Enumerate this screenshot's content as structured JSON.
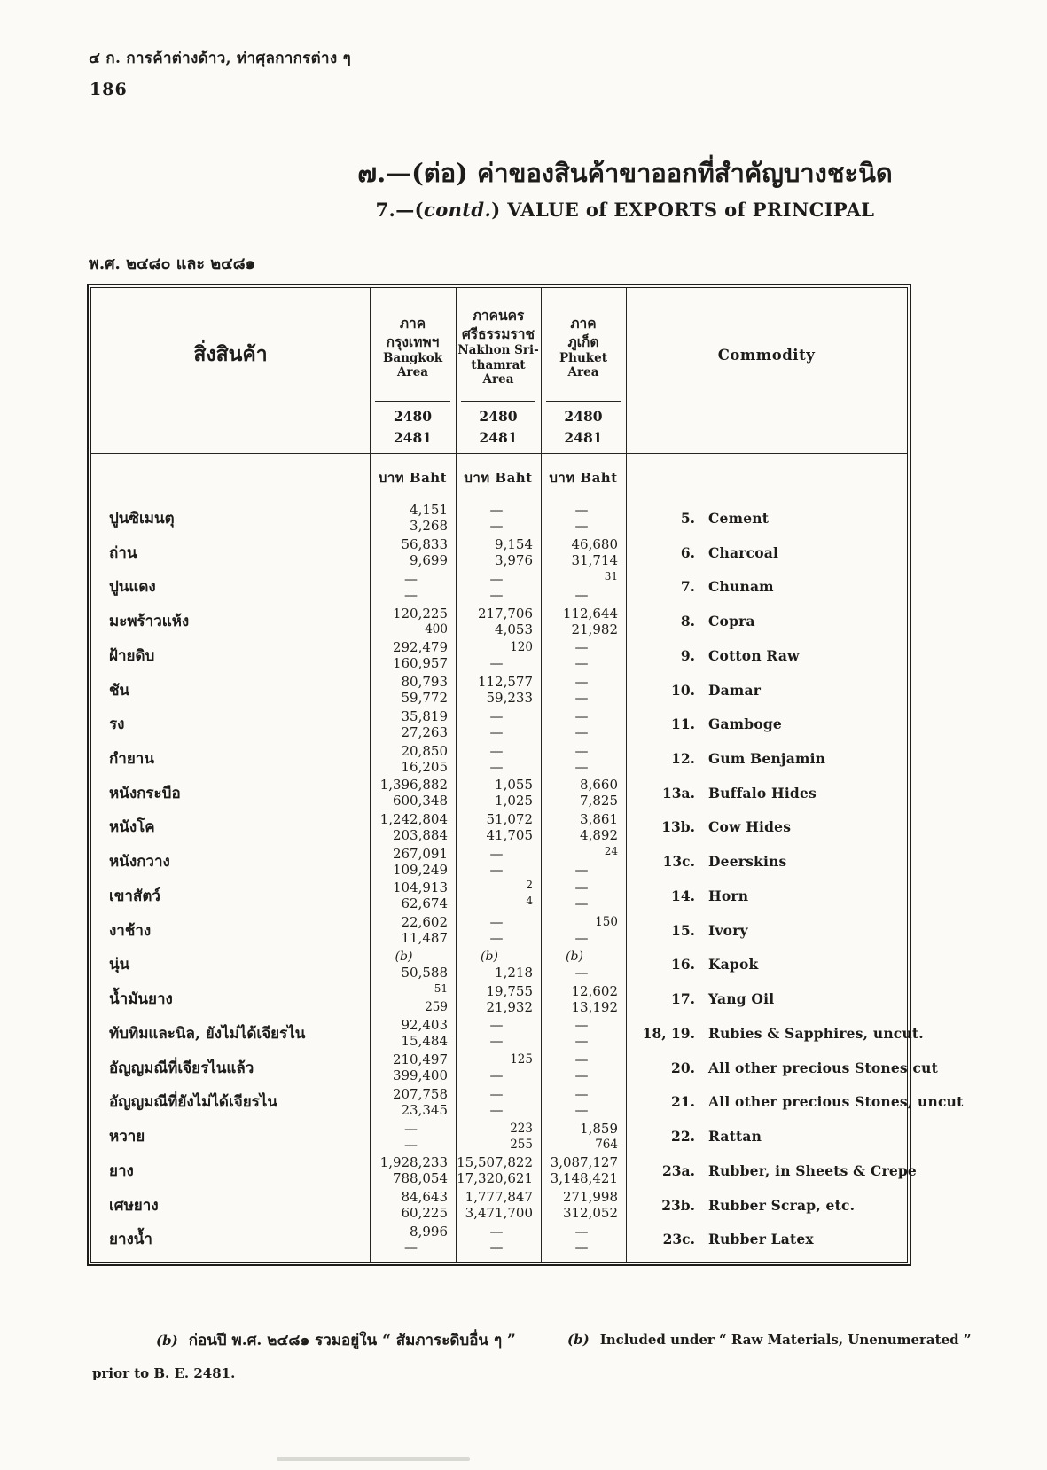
{
  "page": {
    "corner_note": "๔ ก.  การค้าต่างด้าว, ท่าศุลกากรต่าง ๆ",
    "page_number": "186",
    "title_th": "๗.—(ต่อ)  ค่าของสินค้าขาออกที่สำคัญบางชะนิด",
    "title_en_prefix": "7.—(",
    "title_en_contd": "contd.",
    "title_en_rest": ")  VALUE of EXPORTS of PRINCIPAL",
    "years_note": "พ.ศ. ๒๔๘๐ และ ๒๔๘๑"
  },
  "table": {
    "commodity_th_header": "สิ่งสินค้า",
    "commodity_en_header": "Commodity",
    "unit": "บาท  Baht",
    "years": [
      "2480",
      "2481"
    ],
    "areas": [
      {
        "th_lines": [
          "ภาค",
          "กรุงเทพฯ"
        ],
        "en_lines": [
          "Bangkok",
          "Area"
        ]
      },
      {
        "th_lines": [
          "ภาคนคร",
          "ศรีธรรมราช"
        ],
        "en_lines": [
          "Nakhon Sri-",
          "thamrat",
          "Area"
        ]
      },
      {
        "th_lines": [
          "ภาค",
          "ภูเก็ต"
        ],
        "en_lines": [
          "Phuket",
          "Area"
        ]
      }
    ],
    "rows": [
      {
        "th": "ปูนซิเมนตุ",
        "bangkok": [
          "4,151",
          "3,268"
        ],
        "nakhon": [
          "—",
          "—"
        ],
        "phuket": [
          "—",
          "—"
        ],
        "num": "5.",
        "en": "Cement"
      },
      {
        "th": "ถ่าน",
        "bangkok": [
          "56,833",
          "9,699"
        ],
        "nakhon": [
          "9,154",
          "3,976"
        ],
        "phuket": [
          "46,680",
          "31,714"
        ],
        "num": "6.",
        "en": "Charcoal"
      },
      {
        "th": "ปูนแดง",
        "bangkok": [
          "—",
          "—"
        ],
        "nakhon": [
          "—",
          "—"
        ],
        "phuket": [
          "31",
          "—"
        ],
        "num": "7.",
        "en": "Chunam"
      },
      {
        "th": "มะพร้าวแห้ง",
        "bangkok": [
          "120,225",
          "400"
        ],
        "nakhon": [
          "217,706",
          "4,053"
        ],
        "phuket": [
          "112,644",
          "21,982"
        ],
        "num": "8.",
        "en": "Copra"
      },
      {
        "th": "ฝ้ายดิบ",
        "bangkok": [
          "292,479",
          "160,957"
        ],
        "nakhon": [
          "120",
          "—"
        ],
        "phuket": [
          "—",
          "—"
        ],
        "num": "9.",
        "en": "Cotton Raw"
      },
      {
        "th": "ชัน",
        "bangkok": [
          "80,793",
          "59,772"
        ],
        "nakhon": [
          "112,577",
          "59,233"
        ],
        "phuket": [
          "—",
          "—"
        ],
        "num": "10.",
        "en": "Damar"
      },
      {
        "th": "รง",
        "bangkok": [
          "35,819",
          "27,263"
        ],
        "nakhon": [
          "—",
          "—"
        ],
        "phuket": [
          "—",
          "—"
        ],
        "num": "11.",
        "en": "Gamboge"
      },
      {
        "th": "กำยาน",
        "bangkok": [
          "20,850",
          "16,205"
        ],
        "nakhon": [
          "—",
          "—"
        ],
        "phuket": [
          "—",
          "—"
        ],
        "num": "12.",
        "en": "Gum Benjamin"
      },
      {
        "th": "หนังกระบือ",
        "bangkok": [
          "1,396,882",
          "600,348"
        ],
        "nakhon": [
          "1,055",
          "1,025"
        ],
        "phuket": [
          "8,660",
          "7,825"
        ],
        "num": "13a.",
        "en": "Buffalo Hides"
      },
      {
        "th": "หนังโค",
        "bangkok": [
          "1,242,804",
          "203,884"
        ],
        "nakhon": [
          "51,072",
          "41,705"
        ],
        "phuket": [
          "3,861",
          "4,892"
        ],
        "num": "13b.",
        "en": "Cow Hides"
      },
      {
        "th": "หนังกวาง",
        "bangkok": [
          "267,091",
          "109,249"
        ],
        "nakhon": [
          "—",
          "—"
        ],
        "phuket": [
          "24",
          "—"
        ],
        "num": "13c.",
        "en": "Deerskins"
      },
      {
        "th": "เขาสัตว์",
        "bangkok": [
          "104,913",
          "62,674"
        ],
        "nakhon": [
          "2",
          "4"
        ],
        "phuket": [
          "—",
          "—"
        ],
        "num": "14.",
        "en": "Horn"
      },
      {
        "th": "งาช้าง",
        "bangkok": [
          "22,602",
          "11,487"
        ],
        "nakhon": [
          "—",
          "—"
        ],
        "phuket": [
          "150",
          "—"
        ],
        "num": "15.",
        "en": "Ivory"
      },
      {
        "th": "นุ่น",
        "bangkok": [
          "(b)",
          "50,588"
        ],
        "nakhon": [
          "(b)",
          "1,218"
        ],
        "phuket": [
          "(b)",
          "—"
        ],
        "num": "16.",
        "en": "Kapok"
      },
      {
        "th": "น้ำมันยาง",
        "bangkok": [
          "51",
          "259"
        ],
        "nakhon": [
          "19,755",
          "21,932"
        ],
        "phuket": [
          "12,602",
          "13,192"
        ],
        "num": "17.",
        "en": "Yang Oil"
      },
      {
        "th": "ทับทิมและนิล, ยังไม่ได้เจียรไน",
        "bangkok": [
          "92,403",
          "15,484"
        ],
        "nakhon": [
          "—",
          "—"
        ],
        "phuket": [
          "—",
          "—"
        ],
        "num": "18, 19.",
        "en": "Rubies & Sapphires, uncut."
      },
      {
        "th": "อัญญมณีที่เจียรไนแล้ว",
        "bangkok": [
          "210,497",
          "399,400"
        ],
        "nakhon": [
          "125",
          "—"
        ],
        "phuket": [
          "—",
          "—"
        ],
        "num": "20.",
        "en": "All other precious Stones cut"
      },
      {
        "th": "อัญญมณีที่ยังไม่ได้เจียรไน",
        "bangkok": [
          "207,758",
          "23,345"
        ],
        "nakhon": [
          "—",
          "—"
        ],
        "phuket": [
          "—",
          "—"
        ],
        "num": "21.",
        "en": "All other precious Stones, uncut"
      },
      {
        "th": "หวาย",
        "bangkok": [
          "—",
          "—"
        ],
        "nakhon": [
          "223",
          "255"
        ],
        "phuket": [
          "1,859",
          "764"
        ],
        "num": "22.",
        "en": "Rattan"
      },
      {
        "th": "ยาง",
        "bangkok": [
          "1,928,233",
          "788,054"
        ],
        "nakhon": [
          "15,507,822",
          "17,320,621"
        ],
        "phuket": [
          "3,087,127",
          "3,148,421"
        ],
        "num": "23a.",
        "en": "Rubber, in Sheets & Crepe"
      },
      {
        "th": "เศษยาง",
        "bangkok": [
          "84,643",
          "60,225"
        ],
        "nakhon": [
          "1,777,847",
          "3,471,700"
        ],
        "phuket": [
          "271,998",
          "312,052"
        ],
        "num": "23b.",
        "en": "Rubber Scrap, etc."
      },
      {
        "th": "ยางน้ำ",
        "bangkok": [
          "8,996",
          "—"
        ],
        "nakhon": [
          "—",
          "—"
        ],
        "phuket": [
          "—",
          "—"
        ],
        "num": "23c.",
        "en": "Rubber Latex"
      }
    ]
  },
  "footnotes": {
    "th_marker": "(b)",
    "th_text": "ก่อนปี พ.ศ. ๒๔๘๑  รวมอยู่ใน “ สัมภาระดิบอื่น ๆ ”",
    "en_marker": "(b)",
    "en_text": "Included under “ Raw Materials, Unenumerated ”",
    "en_text2": "prior to B. E. 2481."
  }
}
